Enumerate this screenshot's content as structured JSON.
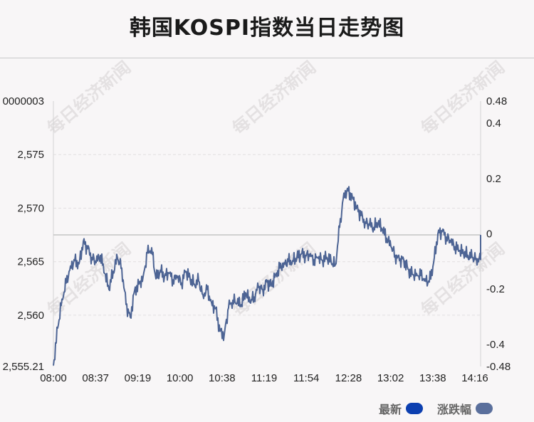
{
  "title": "韩国KOSPI指数当日走势图",
  "watermark": "每日经济新闻",
  "legend": [
    {
      "label": "最新",
      "color": "#0c3fb0"
    },
    {
      "label": "涨跌幅",
      "color": "#5a6f9c"
    }
  ],
  "chart_data": {
    "type": "line",
    "x_ticks": [
      "08:00",
      "08:37",
      "09:19",
      "10:00",
      "10:38",
      "11:19",
      "11:54",
      "12:28",
      "13:02",
      "13:38",
      "14:16"
    ],
    "y_left_ticks": [
      "2,555.21",
      "2,560",
      "2,565",
      "2,570",
      "2,575",
      "0000003"
    ],
    "y_left_range": [
      2555.21,
      2580.0000003
    ],
    "y_right_ticks": [
      "-0.48",
      "-0.4",
      "-0.2",
      "0",
      "0.2",
      "0.4",
      "0.48"
    ],
    "y_right_range": [
      -0.48,
      0.48
    ],
    "zero_line_value": 2567.5,
    "series": [
      {
        "line_color": "#4d6494",
        "x": [
          0.0,
          0.01,
          0.02,
          0.03,
          0.04,
          0.05,
          0.06,
          0.07,
          0.08,
          0.09,
          0.1,
          0.11,
          0.12,
          0.13,
          0.14,
          0.15,
          0.16,
          0.17,
          0.18,
          0.19,
          0.2,
          0.21,
          0.22,
          0.23,
          0.24,
          0.25,
          0.26,
          0.27,
          0.28,
          0.29,
          0.3,
          0.31,
          0.32,
          0.33,
          0.34,
          0.35,
          0.36,
          0.37,
          0.38,
          0.39,
          0.4,
          0.41,
          0.42,
          0.43,
          0.44,
          0.45,
          0.46,
          0.47,
          0.48,
          0.49,
          0.5,
          0.51,
          0.52,
          0.53,
          0.54,
          0.55,
          0.56,
          0.57,
          0.58,
          0.59,
          0.6,
          0.61,
          0.62,
          0.63,
          0.64,
          0.65,
          0.66,
          0.67,
          0.68,
          0.69,
          0.7,
          0.71,
          0.72,
          0.73,
          0.74,
          0.75,
          0.76,
          0.77,
          0.78,
          0.79,
          0.8,
          0.81,
          0.82,
          0.83,
          0.84,
          0.85,
          0.86,
          0.87,
          0.88,
          0.89,
          0.9,
          0.91,
          0.92,
          0.93,
          0.94,
          0.95,
          0.96,
          0.97,
          0.98,
          0.99,
          1.0
        ],
        "values": [
          2555.3,
          2558.8,
          2561.5,
          2563.0,
          2564.6,
          2565.1,
          2564.8,
          2566.9,
          2566.2,
          2565.4,
          2564.9,
          2565.6,
          2563.9,
          2562.4,
          2564.1,
          2565.3,
          2564.4,
          2561.0,
          2559.8,
          2562.3,
          2562.9,
          2563.6,
          2565.8,
          2566.3,
          2563.4,
          2564.2,
          2563.6,
          2563.9,
          2563.3,
          2563.5,
          2563.0,
          2564.1,
          2563.4,
          2562.9,
          2563.2,
          2561.9,
          2562.4,
          2561.2,
          2560.6,
          2558.5,
          2558.2,
          2560.7,
          2561.4,
          2561.1,
          2561.0,
          2562.1,
          2561.2,
          2561.7,
          2562.6,
          2562.4,
          2563.1,
          2562.8,
          2563.8,
          2564.4,
          2564.9,
          2565.0,
          2565.1,
          2565.4,
          2565.7,
          2565.6,
          2565.5,
          2565.2,
          2565.3,
          2565.1,
          2565.4,
          2565.0,
          2564.7,
          2568.2,
          2571.4,
          2571.6,
          2571.0,
          2570.1,
          2569.3,
          2568.7,
          2568.4,
          2568.2,
          2568.6,
          2568.0,
          2567.2,
          2566.4,
          2565.6,
          2565.1,
          2565.2,
          2564.3,
          2563.8,
          2563.9,
          2563.7,
          2563.4,
          2563.1,
          2564.9,
          2567.6,
          2567.8,
          2567.3,
          2566.8,
          2566.4,
          2566.0,
          2565.8,
          2565.6,
          2565.4,
          2565.3,
          2565.2
        ]
      }
    ],
    "grid": true,
    "legend_position": "bottom-right"
  }
}
